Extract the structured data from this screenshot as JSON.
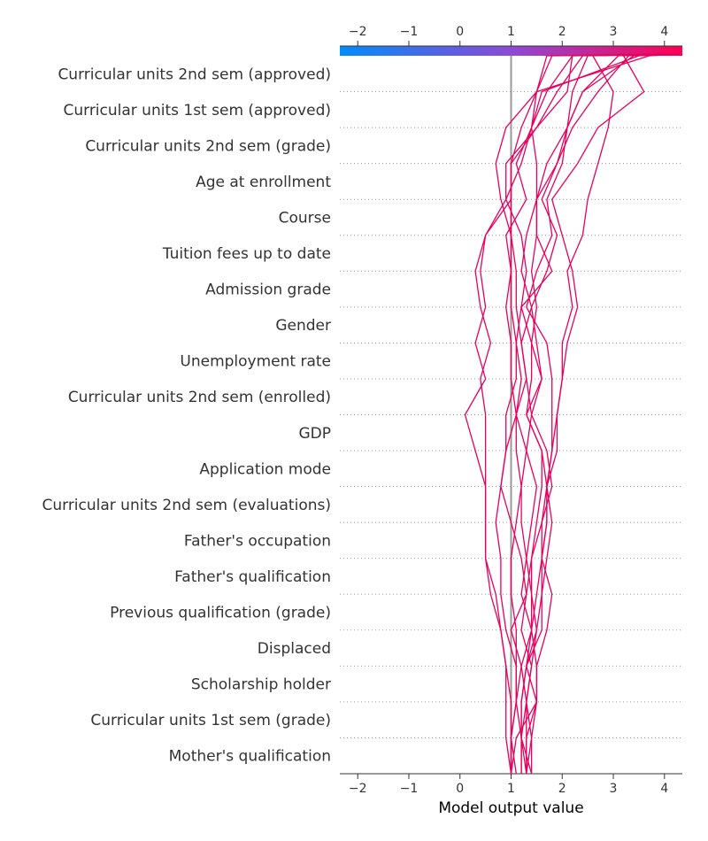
{
  "chart_data": {
    "type": "line",
    "xlabel": "Model output value",
    "xlim": [
      -2.35,
      4.35
    ],
    "xticks": [
      -2,
      -1,
      0,
      1,
      2,
      3,
      4
    ],
    "xtick_labels": [
      "−2",
      "−1",
      "0",
      "1",
      "2",
      "3",
      "4"
    ],
    "base_value": 1.0,
    "colorbar": {
      "colors": [
        "#008bfb",
        "#8d4ad6",
        "#ff0052"
      ]
    },
    "line_color": "#e8005e",
    "features": [
      "Curricular units 2nd sem (approved)",
      "Curricular units 1st sem (approved)",
      "Curricular units 2nd sem (grade)",
      "Age at enrollment",
      "Course",
      "Tuition fees up to date",
      "Admission grade",
      "Gender",
      "Unemployment rate",
      "Curricular units 2nd sem (enrolled)",
      "GDP",
      "Application mode",
      "Curricular units 2nd sem (evaluations)",
      "Father's occupation",
      "Father's qualification",
      "Previous qualification (grade)",
      "Displaced",
      "Scholarship holder",
      "Curricular units 1st sem (grade)",
      "Mother's qualification"
    ],
    "series": [
      {
        "values": [
          1.3,
          1.4,
          1.5,
          1.5,
          1.7,
          1.8,
          1.6,
          1.7,
          1.7,
          1.6,
          1.3,
          1.6,
          1.5,
          1.4,
          1.2,
          1.3,
          1.5,
          1.9,
          2.2,
          2.7,
          3.3,
          4.3
        ]
      },
      {
        "values": [
          1.0,
          1.1,
          1.5,
          1.3,
          1.6,
          1.6,
          1.7,
          1.8,
          1.7,
          1.8,
          1.8,
          1.8,
          1.7,
          1.3,
          1.5,
          1.8,
          1.7,
          2.0,
          2.1,
          2.4,
          3.4,
          4.3
        ]
      },
      {
        "values": [
          1.2,
          1.2,
          1.3,
          1.2,
          1.4,
          1.4,
          1.4,
          1.5,
          1.6,
          1.6,
          1.3,
          1.4,
          1.4,
          1.2,
          1.8,
          1.5,
          1.5,
          1.7,
          2.1,
          2.2,
          2.5,
          4.3
        ]
      },
      {
        "values": [
          1.4,
          1.4,
          1.3,
          1.4,
          1.2,
          1.3,
          1.2,
          1.0,
          0.8,
          0.9,
          0.9,
          1.1,
          1.1,
          1.0,
          1.0,
          1.0,
          0.8,
          0.7,
          0.9,
          1.5,
          3.7,
          4.3
        ]
      },
      {
        "values": [
          1.0,
          1.0,
          1.1,
          1.2,
          1.0,
          1.3,
          1.4,
          1.6,
          1.8,
          1.7,
          1.4,
          1.6,
          1.4,
          1.5,
          1.4,
          1.5,
          1.5,
          1.5,
          1.4,
          1.6,
          3.5,
          4.3
        ]
      },
      {
        "values": [
          1.3,
          1.3,
          1.3,
          1.4,
          1.5,
          1.4,
          1.3,
          1.4,
          1.5,
          1.3,
          1.1,
          1.2,
          1.1,
          1.2,
          1.3,
          1.2,
          0.9,
          0.9,
          1.5,
          1.9,
          2.4,
          4.3
        ]
      },
      {
        "values": [
          1.0,
          1.0,
          1.1,
          1.1,
          0.9,
          0.8,
          0.8,
          0.7,
          0.8,
          0.9,
          1.1,
          1.3,
          1.2,
          1.4,
          1.7,
          1.9,
          1.6,
          1.9,
          2.1,
          2.4,
          3.1,
          4.3
        ]
      },
      {
        "values": [
          1.2,
          1.2,
          1.2,
          1.3,
          1.5,
          1.6,
          1.6,
          1.7,
          1.7,
          1.9,
          1.9,
          2.0,
          2.0,
          2.2,
          2.1,
          2.4,
          2.5,
          2.7,
          2.9,
          3.0,
          2.6,
          4.3
        ]
      },
      {
        "values": [
          1.1,
          1.0,
          1.0,
          0.9,
          0.8,
          0.6,
          0.5,
          0.5,
          0.5,
          0.3,
          0.1,
          0.5,
          0.3,
          0.5,
          0.4,
          0.5,
          1.0,
          1.0,
          1.5,
          2.1,
          2.2,
          4.3
        ]
      },
      {
        "values": [
          1.0,
          0.9,
          0.9,
          0.9,
          0.8,
          0.7,
          0.5,
          0.5,
          0.5,
          0.5,
          0.5,
          0.4,
          0.6,
          0.4,
          0.3,
          0.5,
          0.9,
          1.2,
          1.4,
          1.5,
          1.7,
          4.3
        ]
      },
      {
        "values": [
          1.3,
          1.2,
          1.2,
          1.3,
          1.4,
          1.2,
          1.3,
          1.2,
          1.2,
          1.1,
          1.1,
          1.0,
          1.0,
          0.9,
          1.0,
          0.9,
          1.3,
          1.1,
          1.4,
          1.7,
          2.2,
          4.3
        ]
      },
      {
        "values": [
          1.4,
          1.2,
          1.1,
          1.1,
          1.1,
          1.0,
          1.0,
          1.1,
          1.2,
          1.3,
          1.4,
          1.3,
          1.2,
          1.1,
          1.1,
          1.0,
          1.0,
          1.0,
          1.2,
          1.5,
          1.8,
          4.3
        ]
      },
      {
        "values": [
          1.3,
          1.3,
          1.5,
          1.5,
          1.4,
          1.5,
          1.6,
          1.6,
          1.7,
          1.8,
          1.9,
          2.0,
          2.1,
          2.3,
          2.2,
          2.0,
          1.8,
          2.3,
          2.7,
          3.6,
          3.2,
          4.3
        ]
      }
    ]
  }
}
